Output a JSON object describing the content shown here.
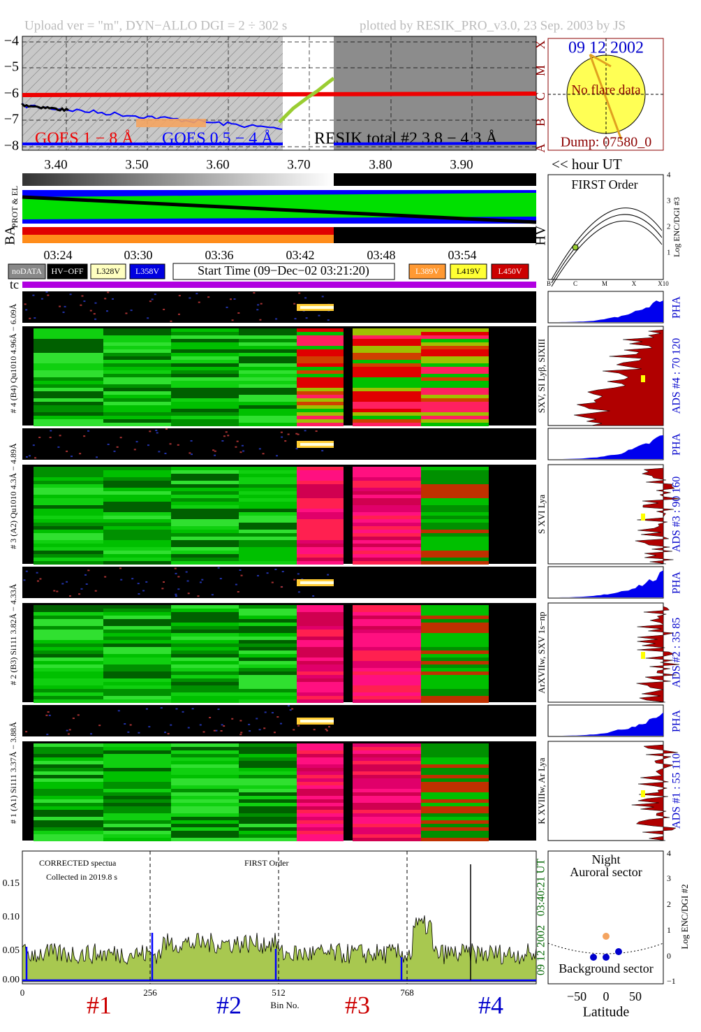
{
  "header": {
    "left": "Upload ver = \"m\", DYN−ALLO DGI =   2 ÷ 302 s",
    "right": "plotted by RESIK_PRO_v3.0, 23 Sep. 2003 by JS"
  },
  "goes_panel": {
    "yticks": [
      "−4",
      "−5",
      "−6",
      "−7",
      "−8"
    ],
    "class_labels": [
      "X",
      "M",
      "C",
      "B",
      "A"
    ],
    "legend": [
      "GOES 1 − 8 Å",
      "GOES 0.5 − 4 Å",
      "RESIK total #2  3.8 − 4.3 Å"
    ],
    "xticks": [
      "3.40",
      "3.50",
      "3.60",
      "3.70",
      "3.80",
      "3.90"
    ],
    "hour_label": "<< hour UT"
  },
  "sun_panel": {
    "date": "09 12 2002",
    "status": "No flare data",
    "dump": "Dump: 07580_0"
  },
  "status_labels": {
    "prot_el": "PROT & EL",
    "ba": "BA",
    "hv": "HV"
  },
  "time_ticks": [
    "03:24",
    "03:30",
    "03:36",
    "03:42",
    "03:48",
    "03:54"
  ],
  "legend_boxes": [
    "noDATA",
    "HV−OFF",
    "L328V",
    "L358V",
    "L389V",
    "L419V",
    "L450V"
  ],
  "start_time": "Start Time (09−Dec−02 03:21:20)",
  "tc": "tc",
  "first_order_panel": {
    "title": "FIRST Order",
    "ylabel": "Log ENC/DGI #3",
    "yticks": [
      "1",
      "2",
      "3",
      "4"
    ],
    "xticks": [
      "B",
      "C",
      "M",
      "X",
      "X10"
    ]
  },
  "channels": [
    {
      "label": "# 4 (B4) Qu1010 4.96Å − 6.09Å",
      "line_label": "SXV, SI Lyβ, SIXIII",
      "pha": "PHA",
      "ads": "ADS #4 :   70 120"
    },
    {
      "label": "# 3 (A2) Qu1010 4.3Å − 4.89Å",
      "line_label": "S XVI Lya",
      "pha": "PHA",
      "ads": "ADS #3 :   90 160"
    },
    {
      "label": "# 2 (B3) Si111 3.82Å − 4.33Å",
      "line_label": "ArXVIIw, SXV 1s−np",
      "pha": "PHA",
      "ads": "ADS #2 :   35 85"
    },
    {
      "label": "# 1 (A1) Si111 3.37Å − 3.88Å",
      "line_label": "K XVIIIw, Ar Lya",
      "pha": "PHA",
      "ads": "ADS #1 :   55 110"
    }
  ],
  "spectrum_panel": {
    "note1": "CORRECTED spectua",
    "note2": "Collected in  2019.8 s",
    "order": "FIRST Order",
    "yticks": [
      "0.00",
      "0.05",
      "0.10",
      "0.15"
    ],
    "xticks": [
      "0",
      "256",
      "512",
      "768"
    ],
    "xlabel": "Bin No.",
    "date": "09 12 2002",
    "time": "03:40:21 UT",
    "markers": [
      "#1",
      "#2",
      "#3",
      "#4"
    ]
  },
  "night_panel": {
    "title1": "Night",
    "title2": "Auroral sector",
    "bottom": "Background sector",
    "ylabel": "Log ENC/DGI #2",
    "yticks": [
      "−1",
      "0",
      "1",
      "2",
      "3",
      "4"
    ],
    "xticks": [
      "−50",
      "0",
      "50"
    ],
    "xlabel": "Latitude"
  }
}
